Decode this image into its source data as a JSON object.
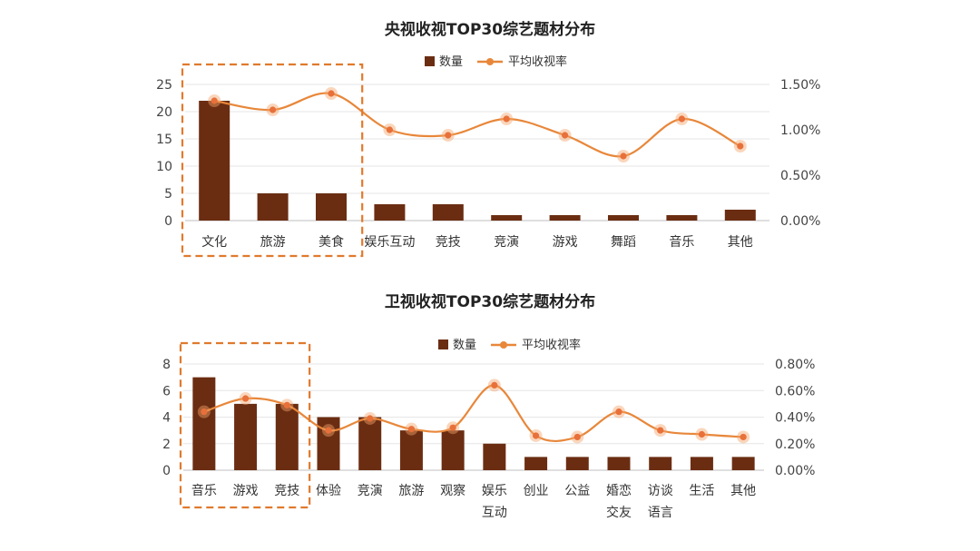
{
  "chart_data": [
    {
      "type": "bar",
      "title": "央视收视TOP30综艺题材分布",
      "categories": [
        "文化",
        "旅游",
        "美食",
        "娱乐互动",
        "竞技",
        "竞演",
        "游戏",
        "舞蹈",
        "音乐",
        "其他"
      ],
      "category_lines": [
        [
          "文化"
        ],
        [
          "旅游"
        ],
        [
          "美食"
        ],
        [
          "娱乐互动"
        ],
        [
          "竞技"
        ],
        [
          "竞演"
        ],
        [
          "游戏"
        ],
        [
          "舞蹈"
        ],
        [
          "音乐"
        ],
        [
          "其他"
        ]
      ],
      "series": [
        {
          "name": "数量",
          "type": "bar",
          "axis": "left",
          "color": "#6b2d12",
          "values": [
            22,
            5,
            5,
            3,
            3,
            1,
            1,
            1,
            1,
            2
          ]
        },
        {
          "name": "平均收视率",
          "type": "line",
          "axis": "right",
          "color": "#e8873a",
          "values": [
            1.32,
            1.22,
            1.4,
            1.0,
            0.94,
            1.12,
            0.94,
            0.71,
            1.12,
            0.82
          ]
        }
      ],
      "ylim": [
        0,
        25
      ],
      "yticks": [
        "0",
        "5",
        "10",
        "15",
        "20",
        "25"
      ],
      "y2lim": [
        0,
        1.5
      ],
      "y2ticks": [
        "0.00%",
        "0.50%",
        "1.00%",
        "1.50%"
      ],
      "highlight_categories": [
        "文化",
        "旅游",
        "美食"
      ],
      "legend_position": "top-center",
      "grid": true
    },
    {
      "type": "bar",
      "title": "卫视收视TOP30综艺题材分布",
      "categories": [
        "音乐",
        "游戏",
        "竞技",
        "体验",
        "竞演",
        "旅游",
        "观察",
        "娱乐互动",
        "创业",
        "公益",
        "婚恋交友",
        "访谈语言",
        "生活",
        "其他"
      ],
      "category_lines": [
        [
          "音乐"
        ],
        [
          "游戏"
        ],
        [
          "竞技"
        ],
        [
          "体验"
        ],
        [
          "竞演"
        ],
        [
          "旅游"
        ],
        [
          "观察"
        ],
        [
          "娱乐",
          "互动"
        ],
        [
          "创业"
        ],
        [
          "公益"
        ],
        [
          "婚恋",
          "交友"
        ],
        [
          "访谈",
          "语言"
        ],
        [
          "生活"
        ],
        [
          "其他"
        ]
      ],
      "series": [
        {
          "name": "数量",
          "type": "bar",
          "axis": "left",
          "color": "#6b2d12",
          "values": [
            7,
            5,
            5,
            4,
            4,
            3,
            3,
            2,
            1,
            1,
            1,
            1,
            1,
            1
          ]
        },
        {
          "name": "平均收视率",
          "type": "line",
          "axis": "right",
          "color": "#e8873a",
          "values": [
            0.44,
            0.54,
            0.49,
            0.3,
            0.39,
            0.31,
            0.32,
            0.64,
            0.26,
            0.25,
            0.44,
            0.3,
            0.27,
            0.25
          ]
        }
      ],
      "ylim": [
        0,
        8
      ],
      "yticks": [
        "0",
        "2",
        "4",
        "6",
        "8"
      ],
      "y2lim": [
        0,
        0.8
      ],
      "y2ticks": [
        "0.00%",
        "0.20%",
        "0.40%",
        "0.60%",
        "0.80%"
      ],
      "highlight_categories": [
        "音乐",
        "游戏",
        "竞技"
      ],
      "legend_position": "top-center",
      "grid": true
    }
  ]
}
